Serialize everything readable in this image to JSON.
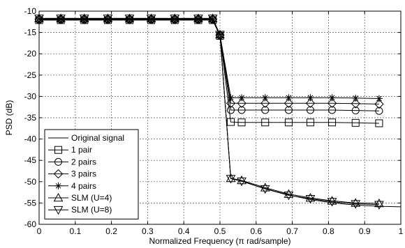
{
  "chart_data": {
    "type": "line",
    "title": "",
    "xlabel": "Normalized Frequency (π rad/sample)",
    "ylabel": "PSD (dB)",
    "xlim": [
      0,
      1
    ],
    "ylim": [
      -60,
      -10
    ],
    "x_ticks": [
      0,
      0.1,
      0.2,
      0.3,
      0.4,
      0.5,
      0.6,
      0.7,
      0.8,
      0.9,
      1
    ],
    "x_tick_labels": [
      "0",
      "0.1",
      "0.2",
      "0.3",
      "0.4",
      "0.5",
      "0.6",
      "0.7",
      "0.8",
      "0.9",
      "1"
    ],
    "y_ticks": [
      -10,
      -15,
      -20,
      -25,
      -30,
      -35,
      -40,
      -45,
      -50,
      -55,
      -60
    ],
    "y_tick_labels": [
      "-10",
      "-15",
      "-20",
      "-25",
      "-30",
      "-35",
      "-40",
      "-45",
      "-50",
      "-55",
      "-60"
    ],
    "grid": true,
    "legend_position": "bottom-left",
    "series": [
      {
        "name": "Original signal",
        "marker": "none",
        "x": [
          0,
          0.06,
          0.125,
          0.19,
          0.25,
          0.31,
          0.375,
          0.44,
          0.48,
          0.5,
          0.53,
          0.56,
          0.6,
          0.65,
          0.7,
          0.75,
          0.8,
          0.85,
          0.9,
          0.95,
          1.0
        ],
        "y": [
          -11.8,
          -11.8,
          -11.8,
          -11.8,
          -11.8,
          -11.8,
          -11.8,
          -11.8,
          -11.8,
          -15.5,
          -49.2,
          -49.8,
          -51.0,
          -52.2,
          -53.3,
          -54.2,
          -54.8,
          -55.3,
          -55.6,
          -55.8,
          -55.9
        ]
      },
      {
        "name": "1 pair",
        "marker": "square",
        "x": [
          0,
          0.06,
          0.125,
          0.19,
          0.25,
          0.31,
          0.375,
          0.44,
          0.48,
          0.5,
          0.53,
          0.56,
          0.625,
          0.69,
          0.75,
          0.81,
          0.875,
          0.94
        ],
        "y": [
          -12.1,
          -12.1,
          -12.1,
          -12.1,
          -12.1,
          -12.1,
          -12.1,
          -12.1,
          -12.1,
          -15.8,
          -36.0,
          -36.1,
          -36.1,
          -36.1,
          -36.1,
          -36.1,
          -36.2,
          -36.3
        ]
      },
      {
        "name": "2 pairs",
        "marker": "circle",
        "x": [
          0,
          0.06,
          0.125,
          0.19,
          0.25,
          0.31,
          0.375,
          0.44,
          0.48,
          0.5,
          0.53,
          0.56,
          0.625,
          0.69,
          0.75,
          0.81,
          0.875,
          0.94
        ],
        "y": [
          -12.0,
          -12.0,
          -12.0,
          -12.0,
          -12.0,
          -12.0,
          -12.0,
          -12.0,
          -12.0,
          -15.7,
          -33.2,
          -33.2,
          -33.2,
          -33.2,
          -33.2,
          -33.2,
          -33.3,
          -33.4
        ]
      },
      {
        "name": "3 pairs",
        "marker": "diamond",
        "x": [
          0,
          0.06,
          0.125,
          0.19,
          0.25,
          0.31,
          0.375,
          0.44,
          0.48,
          0.5,
          0.53,
          0.56,
          0.625,
          0.69,
          0.75,
          0.81,
          0.875,
          0.94
        ],
        "y": [
          -11.9,
          -11.9,
          -11.9,
          -11.9,
          -11.9,
          -11.9,
          -11.9,
          -11.9,
          -11.9,
          -15.6,
          -31.6,
          -31.6,
          -31.6,
          -31.6,
          -31.6,
          -31.6,
          -31.7,
          -31.8
        ]
      },
      {
        "name": "4 pairs",
        "marker": "star",
        "x": [
          0,
          0.06,
          0.125,
          0.19,
          0.25,
          0.31,
          0.375,
          0.44,
          0.48,
          0.5,
          0.53,
          0.56,
          0.625,
          0.69,
          0.75,
          0.81,
          0.875,
          0.94
        ],
        "y": [
          -11.8,
          -11.8,
          -11.8,
          -11.8,
          -11.8,
          -11.8,
          -11.8,
          -11.8,
          -11.8,
          -15.5,
          -30.3,
          -30.3,
          -30.3,
          -30.3,
          -30.3,
          -30.3,
          -30.4,
          -30.5
        ]
      },
      {
        "name": "SLM (U=4)",
        "marker": "triangle-up",
        "x": [
          0,
          0.06,
          0.125,
          0.19,
          0.25,
          0.31,
          0.375,
          0.44,
          0.48,
          0.5,
          0.53,
          0.56,
          0.625,
          0.69,
          0.75,
          0.81,
          0.875,
          0.94
        ],
        "y": [
          -11.7,
          -11.7,
          -11.7,
          -11.7,
          -11.7,
          -11.7,
          -11.7,
          -11.7,
          -11.7,
          -15.5,
          -49.2,
          -49.7,
          -51.4,
          -52.9,
          -53.8,
          -54.5,
          -55.0,
          -55.1
        ]
      },
      {
        "name": "SLM (U=8)",
        "marker": "triangle-down",
        "x": [
          0,
          0.06,
          0.125,
          0.19,
          0.25,
          0.31,
          0.375,
          0.44,
          0.48,
          0.5,
          0.53,
          0.56,
          0.625,
          0.69,
          0.75,
          0.81,
          0.875,
          0.94
        ],
        "y": [
          -11.7,
          -11.7,
          -11.7,
          -11.7,
          -11.7,
          -11.7,
          -11.7,
          -11.7,
          -11.7,
          -15.5,
          -49.3,
          -49.9,
          -51.7,
          -53.2,
          -54.0,
          -54.7,
          -55.2,
          -55.4
        ]
      }
    ]
  }
}
